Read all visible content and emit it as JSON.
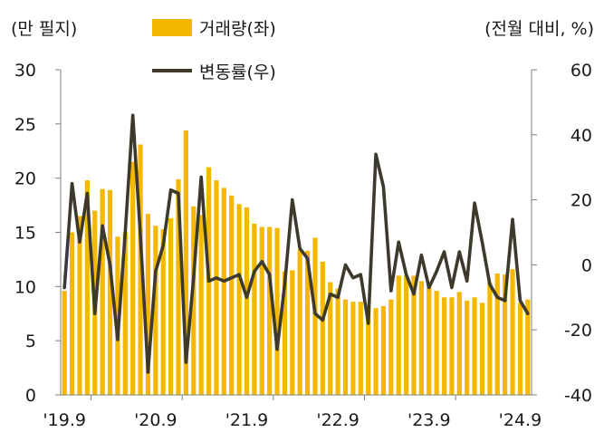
{
  "chart_data": {
    "type": "bar+line",
    "left_axis_unit": "(만 필지)",
    "right_axis_unit": "(전월 대비, %)",
    "left_ylim": [
      0,
      30
    ],
    "right_ylim": [
      -40,
      60
    ],
    "left_ticks": [
      "0",
      "5",
      "10",
      "15",
      "20",
      "25",
      "30"
    ],
    "right_ticks": [
      "-40",
      "-20",
      "0",
      "20",
      "40",
      "60"
    ],
    "x_tick_labels": [
      "'19.9",
      "'20.9",
      "'21.9",
      "'22.9",
      "'23.9",
      "'24.9"
    ],
    "grid": false,
    "legend": [
      {
        "name": "거래량(좌)",
        "symbol": "bar"
      },
      {
        "name": "변동률(우)",
        "symbol": "line"
      }
    ],
    "colors": {
      "bar": "#F5B800",
      "line": "#3D3A2C",
      "axis": "#7F7F7F"
    },
    "months": [
      "2019-09",
      "2019-10",
      "2019-11",
      "2019-12",
      "2020-01",
      "2020-02",
      "2020-03",
      "2020-04",
      "2020-05",
      "2020-06",
      "2020-07",
      "2020-08",
      "2020-09",
      "2020-10",
      "2020-11",
      "2020-12",
      "2021-01",
      "2021-02",
      "2021-03",
      "2021-04",
      "2021-05",
      "2021-06",
      "2021-07",
      "2021-08",
      "2021-09",
      "2021-10",
      "2021-11",
      "2021-12",
      "2022-01",
      "2022-02",
      "2022-03",
      "2022-04",
      "2022-05",
      "2022-06",
      "2022-07",
      "2022-08",
      "2022-09",
      "2022-10",
      "2022-11",
      "2022-12",
      "2023-01",
      "2023-02",
      "2023-03",
      "2023-04",
      "2023-05",
      "2023-06",
      "2023-07",
      "2023-08",
      "2023-09",
      "2023-10",
      "2023-11",
      "2023-12",
      "2024-01",
      "2024-02",
      "2024-03",
      "2024-04",
      "2024-05",
      "2024-06",
      "2024-07",
      "2024-08",
      "2024-09",
      "2024-10"
    ],
    "series": [
      {
        "name": "거래량(좌)",
        "axis": "left",
        "kind": "bar",
        "values": [
          9.6,
          15.0,
          16.5,
          19.8,
          17.0,
          19.0,
          18.9,
          14.6,
          15.0,
          21.5,
          23.1,
          16.7,
          15.6,
          15.3,
          16.3,
          19.9,
          24.4,
          17.4,
          16.6,
          21.0,
          19.8,
          19.1,
          18.4,
          17.6,
          17.3,
          15.8,
          15.5,
          15.5,
          15.4,
          11.4,
          11.5,
          13.4,
          13.3,
          14.5,
          12.3,
          10.4,
          9.8,
          8.8,
          8.6,
          8.6,
          8.2,
          8.0,
          8.2,
          8.8,
          11.0,
          11.0,
          11.0,
          10.5,
          10.2,
          9.6,
          9.0,
          9.0,
          9.5,
          8.7,
          9.0,
          8.5,
          10.4,
          11.2,
          11.1,
          11.6,
          8.5,
          8.8
        ]
      },
      {
        "name": "변동률(우)",
        "axis": "right",
        "kind": "line",
        "values": [
          -7,
          25,
          7,
          22,
          -15,
          12,
          0,
          -23,
          10,
          46,
          9,
          -33,
          -2,
          6,
          23,
          22,
          -30,
          -4,
          27,
          -5,
          -4,
          -5,
          -4,
          -3,
          -10,
          -2,
          1,
          -3,
          -26,
          -6,
          20,
          5,
          2,
          -15,
          -17,
          -9,
          -10,
          0,
          -4,
          -3,
          -18,
          34,
          24,
          -8,
          7,
          -3,
          -9,
          3,
          -7,
          -2,
          4,
          -7,
          4,
          -5,
          19,
          7,
          -6,
          -10,
          -11,
          14,
          -11,
          -15
        ]
      }
    ]
  }
}
